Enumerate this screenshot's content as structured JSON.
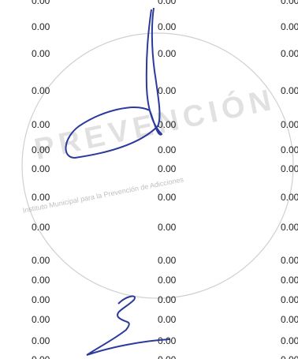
{
  "table": {
    "rows": [
      [
        "0.00",
        "0.00",
        "0.00"
      ],
      [
        "0.00",
        "0.00",
        "0.00"
      ],
      [
        "0.00",
        "0.00",
        "0.00"
      ],
      [
        "0.00",
        "0.00",
        "0.00"
      ],
      [
        "0.00",
        "0.00",
        "0.00"
      ],
      [
        "0.00",
        "0.00",
        "0.00"
      ],
      [
        "0.00",
        "0.00",
        "0.00"
      ],
      [
        "0.00",
        "0.00",
        "0.00"
      ],
      [
        "0.00",
        "0.00",
        "0.00"
      ],
      [
        "0.00",
        "0.00",
        "0.00"
      ],
      [
        "0.00",
        "0.00",
        "0.00"
      ],
      [
        "0.00",
        "0.00",
        "0.00"
      ],
      [
        "0.00",
        "0.00",
        "0.00"
      ],
      [
        "0.00",
        "0.00",
        "0.00"
      ],
      [
        "0.00",
        "0.00",
        "0.00"
      ]
    ]
  },
  "stamp": {
    "title": "PREVENCIÓN",
    "subtitle": "Instituto Municipal para la Prevención de Adicciones"
  }
}
